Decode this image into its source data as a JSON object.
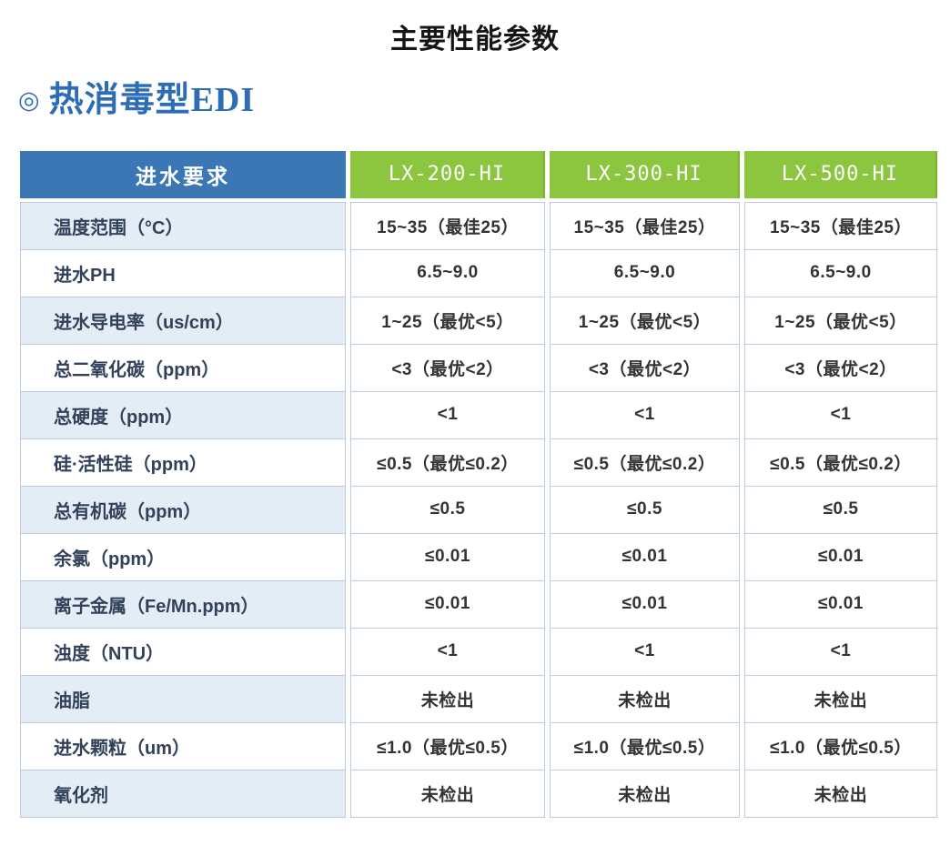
{
  "title": "主要性能参数",
  "section": {
    "bullet": "◎",
    "heading": "热消毒型EDI"
  },
  "table": {
    "header": {
      "param_label": "进水要求",
      "models": [
        "LX-200-HI",
        "LX-300-HI",
        "LX-500-HI"
      ]
    },
    "rows": [
      {
        "label": "温度范围（°C）",
        "values": [
          "15~35（最佳25）",
          "15~35（最佳25）",
          "15~35（最佳25）"
        ]
      },
      {
        "label": "进水PH",
        "values": [
          "6.5~9.0",
          "6.5~9.0",
          "6.5~9.0"
        ]
      },
      {
        "label": "进水导电率（us/cm）",
        "values": [
          "1~25（最优<5）",
          "1~25（最优<5）",
          "1~25（最优<5）"
        ]
      },
      {
        "label": "总二氧化碳（ppm）",
        "values": [
          "<3（最优<2）",
          "<3（最优<2）",
          "<3（最优<2）"
        ]
      },
      {
        "label": "总硬度（ppm）",
        "values": [
          "<1",
          "<1",
          "<1"
        ]
      },
      {
        "label": "硅·活性硅（ppm）",
        "values": [
          "≤0.5（最优≤0.2）",
          "≤0.5（最优≤0.2）",
          "≤0.5（最优≤0.2）"
        ]
      },
      {
        "label": "总有机碳（ppm）",
        "values": [
          "≤0.5",
          "≤0.5",
          "≤0.5"
        ]
      },
      {
        "label": "余氯（ppm）",
        "values": [
          "≤0.01",
          "≤0.01",
          "≤0.01"
        ]
      },
      {
        "label": "离子金属（Fe/Mn.ppm）",
        "values": [
          "≤0.01",
          "≤0.01",
          "≤0.01"
        ]
      },
      {
        "label": "浊度（NTU）",
        "values": [
          "<1",
          "<1",
          "<1"
        ]
      },
      {
        "label": "油脂",
        "values": [
          "未检出",
          "未检出",
          "未检出"
        ]
      },
      {
        "label": "进水颗粒（um）",
        "values": [
          "≤1.0（最优≤0.5）",
          "≤1.0（最优≤0.5）",
          "≤1.0（最优≤0.5）"
        ]
      },
      {
        "label": "氧化剂",
        "values": [
          "未检出",
          "未检出",
          "未检出"
        ]
      }
    ]
  },
  "colors": {
    "header_param_bg": "#3a77b4",
    "header_model_bg": "#8cc63f",
    "header_model_edge": "#7ab52e",
    "row_label_alt_bg": "#e4ecf6",
    "border": "#bccbdd",
    "section_heading": "#2d6db6",
    "label_text": "#31415a",
    "value_text": "#333333"
  }
}
